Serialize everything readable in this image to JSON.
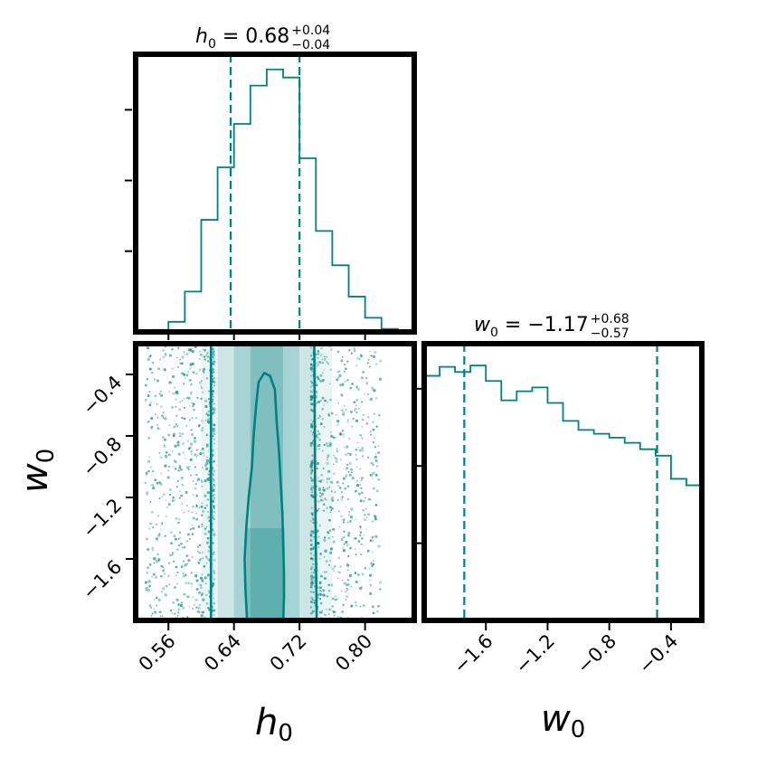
{
  "chart_data": {
    "type": "corner",
    "color": "#008080",
    "parameters": [
      {
        "symbol": "h",
        "subscript": "0"
      },
      {
        "symbol": "w",
        "subscript": "0"
      }
    ],
    "panels": [
      {
        "kind": "histogram",
        "param": "h0",
        "title": {
          "name": "h",
          "sub": "0",
          "eq": " = 0.68",
          "plus": "+0.04",
          "minus": "−0.04"
        },
        "xlim": [
          0.52,
          0.86
        ],
        "bin_edges": [
          0.52,
          0.54,
          0.56,
          0.58,
          0.6,
          0.62,
          0.64,
          0.66,
          0.68,
          0.7,
          0.72,
          0.74,
          0.76,
          0.78,
          0.8,
          0.82,
          0.84,
          0.86
        ],
        "counts": [
          0,
          2,
          10,
          40,
          111,
          163,
          206,
          244,
          260,
          252,
          172,
          100,
          66,
          35,
          14,
          3,
          0
        ],
        "ymax": 275,
        "quantiles": [
          0.636,
          0.72
        ]
      },
      {
        "kind": "histogram",
        "param": "w0",
        "title": {
          "name": "w",
          "sub": "0",
          "eq": " = −1.17",
          "plus": "+0.68",
          "minus": "−0.57"
        },
        "xlim": [
          -2.0,
          -0.2
        ],
        "bin_edges": [
          -2.0,
          -1.9,
          -1.8,
          -1.7,
          -1.6,
          -1.5,
          -1.4,
          -1.3,
          -1.2,
          -1.1,
          -1.0,
          -0.9,
          -0.8,
          -0.7,
          -0.6,
          -0.5,
          -0.4,
          -0.3,
          -0.2
        ],
        "counts": [
          190,
          197,
          193,
          198,
          186,
          171,
          178,
          181,
          169,
          155,
          148,
          145,
          142,
          138,
          133,
          128,
          110,
          105
        ],
        "ymax": 215,
        "quantiles": [
          -1.74,
          -0.49
        ]
      },
      {
        "kind": "2d-density",
        "x": "h0",
        "y": "w0",
        "xlim": [
          0.52,
          0.86
        ],
        "ylim": [
          -2.0,
          -0.2
        ],
        "density_columns": [
          {
            "x": [
              0.52,
              0.6
            ],
            "level": 0.0
          },
          {
            "x": [
              0.6,
              0.62
            ],
            "level": 0.08
          },
          {
            "x": [
              0.62,
              0.64
            ],
            "level": 0.2
          },
          {
            "x": [
              0.64,
              0.66
            ],
            "level": 0.35
          },
          {
            "x": [
              0.66,
              0.7
            ],
            "level": 0.5
          },
          {
            "x": [
              0.7,
              0.72
            ],
            "level": 0.35
          },
          {
            "x": [
              0.72,
              0.74
            ],
            "level": 0.2
          },
          {
            "x": [
              0.74,
              0.76
            ],
            "level": 0.08
          },
          {
            "x": [
              0.76,
              0.86
            ],
            "level": 0.0
          }
        ],
        "contours": [
          {
            "name": "contour-1sigma",
            "points": [
              [
                0.656,
                -2.0
              ],
              [
                0.654,
                -1.8
              ],
              [
                0.653,
                -1.6
              ],
              [
                0.655,
                -1.4
              ],
              [
                0.658,
                -1.2
              ],
              [
                0.662,
                -1.0
              ],
              [
                0.664,
                -0.8
              ],
              [
                0.667,
                -0.6
              ],
              [
                0.67,
                -0.45
              ],
              [
                0.677,
                -0.39
              ],
              [
                0.684,
                -0.41
              ],
              [
                0.69,
                -0.5
              ],
              [
                0.692,
                -0.7
              ],
              [
                0.695,
                -0.9
              ],
              [
                0.697,
                -1.1
              ],
              [
                0.699,
                -1.3
              ],
              [
                0.7,
                -1.5
              ],
              [
                0.701,
                -1.7
              ],
              [
                0.701,
                -1.85
              ],
              [
                0.7,
                -2.0
              ]
            ]
          },
          {
            "name": "contour-2sigma-left",
            "points": [
              [
                0.612,
                -0.2
              ],
              [
                0.612,
                -2.0
              ]
            ]
          },
          {
            "name": "contour-2sigma-right",
            "points": [
              [
                0.738,
                -0.2
              ],
              [
                0.739,
                -1.1
              ],
              [
                0.741,
                -2.0
              ]
            ]
          }
        ]
      }
    ],
    "axes": {
      "h0_ticks": [
        "0.56",
        "0.64",
        "0.72",
        "0.80"
      ],
      "w0_ticks": [
        "−1.6",
        "−1.2",
        "−0.8",
        "−0.4"
      ],
      "h0_tick_values": [
        0.56,
        0.64,
        0.72,
        0.8
      ],
      "w0_tick_values": [
        -1.6,
        -1.2,
        -0.8,
        -0.4
      ]
    }
  }
}
